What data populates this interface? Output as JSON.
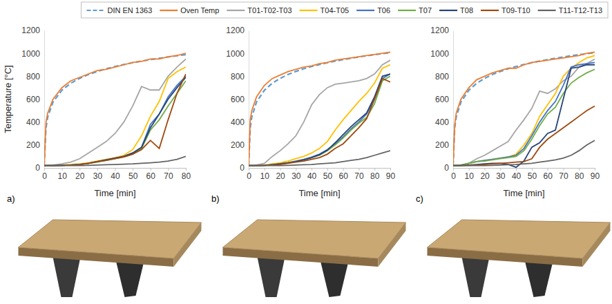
{
  "chart_data": [
    {
      "type": "line",
      "title": "a)",
      "x_label": "Time [min]",
      "y_label": "Temperature [°C]",
      "legend": "top",
      "grid": false,
      "xlim": [
        0,
        80
      ],
      "xticks": [
        0,
        10,
        20,
        30,
        40,
        50,
        60,
        70,
        80
      ],
      "ylim": [
        0,
        1200
      ],
      "yticks": [
        0,
        200,
        400,
        600,
        800,
        1000,
        1200
      ],
      "x": [
        0,
        1,
        2,
        5,
        10,
        15,
        20,
        25,
        30,
        35,
        40,
        45,
        50,
        55,
        60,
        65,
        70,
        75,
        80
      ],
      "series": [
        {
          "name": "DIN EN 1363",
          "color": "#5b9bd5",
          "line_style": "dashed",
          "values": [
            20,
            349,
            445,
            576,
            678,
            739,
            781,
            815,
            842,
            865,
            885,
            902,
            918,
            932,
            945,
            957,
            968,
            979,
            988
          ]
        },
        {
          "name": "Oven Temp",
          "color": "#ed7d31",
          "line_style": "solid",
          "values": [
            20,
            400,
            480,
            600,
            700,
            760,
            790,
            820,
            850,
            860,
            880,
            900,
            920,
            930,
            950,
            950,
            970,
            980,
            1000
          ]
        },
        {
          "name": "T01-T02-T03",
          "color": "#a5a5a5",
          "line_style": "solid",
          "values": [
            20,
            20,
            20,
            25,
            35,
            50,
            80,
            130,
            180,
            230,
            300,
            400,
            540,
            710,
            680,
            680,
            800,
            880,
            950
          ]
        },
        {
          "name": "T04-T05",
          "color": "#ffc000",
          "line_style": "solid",
          "values": [
            20,
            20,
            20,
            20,
            25,
            30,
            35,
            45,
            60,
            75,
            90,
            110,
            160,
            280,
            450,
            580,
            780,
            840,
            880
          ]
        },
        {
          "name": "T06",
          "color": "#4472c4",
          "line_style": "solid",
          "values": [
            20,
            20,
            20,
            20,
            22,
            25,
            30,
            40,
            55,
            70,
            85,
            100,
            130,
            180,
            380,
            470,
            620,
            720,
            800
          ]
        },
        {
          "name": "T07",
          "color": "#70ad47",
          "line_style": "solid",
          "values": [
            20,
            20,
            20,
            20,
            22,
            25,
            30,
            38,
            50,
            65,
            80,
            95,
            120,
            170,
            330,
            420,
            540,
            650,
            760
          ]
        },
        {
          "name": "T08",
          "color": "#264478",
          "line_style": "solid",
          "values": [
            20,
            20,
            20,
            20,
            22,
            25,
            30,
            40,
            55,
            70,
            85,
            100,
            130,
            180,
            350,
            470,
            600,
            700,
            790
          ]
        },
        {
          "name": "T09-T10",
          "color": "#9e480e",
          "line_style": "solid",
          "values": [
            20,
            20,
            20,
            20,
            22,
            25,
            30,
            40,
            55,
            65,
            80,
            95,
            120,
            160,
            240,
            170,
            420,
            650,
            820
          ]
        },
        {
          "name": "T11-T12-T13",
          "color": "#636363",
          "line_style": "solid",
          "values": [
            20,
            20,
            20,
            20,
            20,
            20,
            20,
            22,
            25,
            28,
            30,
            32,
            35,
            40,
            45,
            50,
            60,
            75,
            100
          ]
        }
      ]
    },
    {
      "type": "line",
      "title": "b)",
      "x_label": "Time [min]",
      "grid": false,
      "xlim": [
        0,
        90
      ],
      "xticks": [
        0,
        10,
        20,
        30,
        40,
        50,
        60,
        70,
        80,
        90
      ],
      "ylim": [
        0,
        1200
      ],
      "yticks": [
        0,
        200,
        400,
        600,
        800,
        1000,
        1200
      ],
      "x": [
        0,
        1,
        2,
        5,
        10,
        15,
        20,
        25,
        30,
        35,
        40,
        45,
        50,
        55,
        60,
        65,
        70,
        75,
        80,
        85,
        90
      ],
      "series": [
        {
          "name": "DIN EN 1363",
          "color": "#5b9bd5",
          "line_style": "dashed",
          "values": [
            20,
            349,
            445,
            576,
            678,
            739,
            781,
            815,
            842,
            865,
            885,
            902,
            918,
            932,
            945,
            957,
            968,
            979,
            988,
            997,
            1006
          ]
        },
        {
          "name": "Oven Temp",
          "color": "#ed7d31",
          "line_style": "solid",
          "values": [
            20,
            420,
            500,
            620,
            720,
            780,
            810,
            840,
            860,
            880,
            890,
            910,
            920,
            940,
            950,
            960,
            970,
            980,
            990,
            1000,
            1010
          ]
        },
        {
          "name": "T01-T02-T03",
          "color": "#a5a5a5",
          "line_style": "solid",
          "values": [
            20,
            20,
            20,
            25,
            40,
            100,
            150,
            210,
            280,
            400,
            550,
            640,
            700,
            730,
            740,
            750,
            760,
            780,
            820,
            900,
            940
          ]
        },
        {
          "name": "T04-T05",
          "color": "#ffc000",
          "line_style": "solid",
          "values": [
            20,
            20,
            20,
            20,
            25,
            35,
            45,
            60,
            80,
            100,
            130,
            170,
            230,
            330,
            420,
            500,
            580,
            650,
            740,
            870,
            900
          ]
        },
        {
          "name": "T06",
          "color": "#4472c4",
          "line_style": "solid",
          "values": [
            20,
            20,
            20,
            20,
            22,
            28,
            35,
            45,
            60,
            75,
            95,
            120,
            160,
            210,
            270,
            340,
            400,
            470,
            600,
            780,
            820
          ]
        },
        {
          "name": "T07",
          "color": "#70ad47",
          "line_style": "solid",
          "values": [
            20,
            20,
            20,
            20,
            22,
            28,
            35,
            45,
            55,
            70,
            90,
            110,
            150,
            200,
            260,
            330,
            390,
            440,
            560,
            760,
            800
          ]
        },
        {
          "name": "T08",
          "color": "#264478",
          "line_style": "solid",
          "values": [
            20,
            20,
            20,
            20,
            22,
            28,
            35,
            45,
            55,
            70,
            90,
            115,
            155,
            220,
            290,
            360,
            420,
            480,
            620,
            800,
            820
          ]
        },
        {
          "name": "T09-T10",
          "color": "#9e480e",
          "line_style": "solid",
          "values": [
            20,
            20,
            20,
            20,
            22,
            25,
            30,
            40,
            50,
            60,
            75,
            90,
            120,
            170,
            210,
            280,
            350,
            430,
            600,
            780,
            750
          ]
        },
        {
          "name": "T11-T12-T13",
          "color": "#636363",
          "line_style": "solid",
          "values": [
            20,
            20,
            20,
            20,
            20,
            20,
            20,
            22,
            25,
            28,
            30,
            35,
            40,
            45,
            55,
            65,
            75,
            90,
            110,
            130,
            150
          ]
        }
      ]
    },
    {
      "type": "line",
      "title": "c)",
      "x_label": "Time [min]",
      "grid": false,
      "xlim": [
        0,
        90
      ],
      "xticks": [
        0,
        10,
        20,
        30,
        40,
        50,
        60,
        70,
        80,
        90
      ],
      "ylim": [
        0,
        1200
      ],
      "yticks": [
        0,
        200,
        400,
        600,
        800,
        1000,
        1200
      ],
      "x": [
        0,
        1,
        2,
        5,
        10,
        15,
        20,
        25,
        30,
        35,
        40,
        45,
        50,
        55,
        60,
        65,
        70,
        75,
        80,
        85,
        90
      ],
      "series": [
        {
          "name": "DIN EN 1363",
          "color": "#5b9bd5",
          "line_style": "dashed",
          "values": [
            20,
            349,
            445,
            576,
            678,
            739,
            781,
            815,
            842,
            865,
            885,
            902,
            918,
            932,
            945,
            957,
            968,
            979,
            988,
            997,
            1006
          ]
        },
        {
          "name": "Oven Temp",
          "color": "#ed7d31",
          "line_style": "solid",
          "values": [
            20,
            380,
            480,
            600,
            700,
            770,
            800,
            830,
            850,
            870,
            870,
            900,
            920,
            930,
            940,
            950,
            960,
            970,
            980,
            1000,
            1010
          ]
        },
        {
          "name": "T01-T02-T03",
          "color": "#a5a5a5",
          "line_style": "solid",
          "values": [
            20,
            20,
            20,
            20,
            40,
            80,
            110,
            150,
            190,
            230,
            330,
            420,
            520,
            670,
            650,
            690,
            760,
            800,
            880,
            910,
            950
          ]
        },
        {
          "name": "T04-T05",
          "color": "#ffc000",
          "line_style": "solid",
          "values": [
            20,
            20,
            20,
            25,
            40,
            55,
            65,
            75,
            85,
            95,
            120,
            200,
            300,
            450,
            550,
            650,
            800,
            870,
            920,
            960,
            980
          ]
        },
        {
          "name": "T06",
          "color": "#4472c4",
          "line_style": "solid",
          "values": [
            20,
            20,
            20,
            25,
            40,
            55,
            65,
            75,
            85,
            95,
            110,
            170,
            280,
            400,
            500,
            580,
            720,
            880,
            900,
            910,
            920
          ]
        },
        {
          "name": "T07",
          "color": "#70ad47",
          "line_style": "solid",
          "values": [
            20,
            20,
            20,
            25,
            40,
            55,
            60,
            70,
            80,
            90,
            100,
            150,
            250,
            370,
            470,
            530,
            650,
            740,
            790,
            830,
            860
          ]
        },
        {
          "name": "T08",
          "color": "#264478",
          "line_style": "solid",
          "values": [
            20,
            20,
            20,
            20,
            25,
            30,
            35,
            40,
            40,
            30,
            5,
            60,
            180,
            220,
            300,
            330,
            600,
            870,
            880,
            900,
            900
          ]
        },
        {
          "name": "T09-T10",
          "color": "#9e480e",
          "line_style": "solid",
          "values": [
            20,
            20,
            20,
            20,
            22,
            25,
            30,
            35,
            40,
            45,
            50,
            55,
            80,
            180,
            250,
            300,
            350,
            400,
            450,
            500,
            540
          ]
        },
        {
          "name": "T11-T12-T13",
          "color": "#636363",
          "line_style": "solid",
          "values": [
            20,
            20,
            20,
            20,
            20,
            20,
            20,
            22,
            25,
            28,
            30,
            35,
            40,
            50,
            60,
            70,
            85,
            110,
            150,
            200,
            240
          ]
        }
      ]
    }
  ]
}
